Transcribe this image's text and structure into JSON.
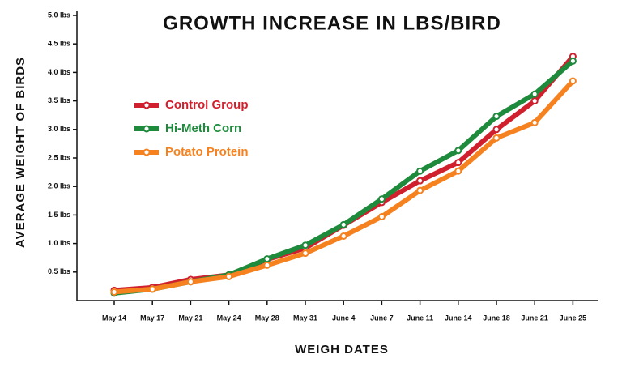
{
  "chart_data": {
    "type": "line",
    "title": "GROWTH INCREASE IN LBS/BIRD",
    "x_label": "WEIGH DATES",
    "y_label": "AVERAGE WEIGHT OF BIRDS",
    "categories": [
      "May 14",
      "May 17",
      "May 21",
      "May 24",
      "May 28",
      "May 31",
      "June 4",
      "June 7",
      "June 11",
      "June 14",
      "June 18",
      "June 21",
      "June 25"
    ],
    "ylim": [
      0,
      5
    ],
    "yticks": [
      {
        "value": 0.5,
        "label": "0.5 lbs"
      },
      {
        "value": 1,
        "label": "1.0 lbs"
      },
      {
        "value": 1.5,
        "label": "1.5 lbs"
      },
      {
        "value": 2,
        "label": "2.0 lbs"
      },
      {
        "value": 2.5,
        "label": "2.5 lbs"
      },
      {
        "value": 3,
        "label": "3.0 lbs"
      },
      {
        "value": 3.5,
        "label": "3.5 lbs"
      },
      {
        "value": 4,
        "label": "4.0 lbs"
      },
      {
        "value": 4.5,
        "label": "4.5 lbs"
      },
      {
        "value": 5,
        "label": "5.0 lbs"
      }
    ],
    "grid": false,
    "legend": "upper left",
    "series": [
      {
        "name": "Control Group",
        "color": "#d0202e",
        "values": [
          0.18,
          0.23,
          0.37,
          0.45,
          0.72,
          0.92,
          1.32,
          1.72,
          2.1,
          2.42,
          3.0,
          3.5,
          4.28
        ]
      },
      {
        "name": "Hi-Meth Corn",
        "color": "#1e8a3c",
        "values": [
          0.13,
          0.2,
          0.33,
          0.45,
          0.73,
          0.97,
          1.33,
          1.78,
          2.27,
          2.63,
          3.23,
          3.62,
          4.2
        ]
      },
      {
        "name": "Potato Protein",
        "color": "#f5821f",
        "values": [
          0.15,
          0.2,
          0.33,
          0.42,
          0.62,
          0.83,
          1.13,
          1.47,
          1.93,
          2.27,
          2.85,
          3.12,
          3.85
        ]
      }
    ]
  }
}
